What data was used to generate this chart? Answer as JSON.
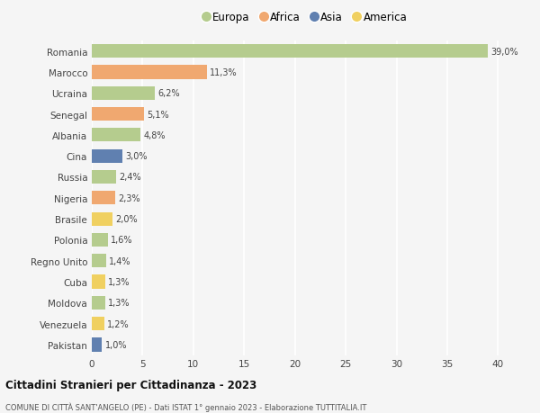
{
  "countries": [
    "Romania",
    "Marocco",
    "Ucraina",
    "Senegal",
    "Albania",
    "Cina",
    "Russia",
    "Nigeria",
    "Brasile",
    "Polonia",
    "Regno Unito",
    "Cuba",
    "Moldova",
    "Venezuela",
    "Pakistan"
  ],
  "values": [
    39.0,
    11.3,
    6.2,
    5.1,
    4.8,
    3.0,
    2.4,
    2.3,
    2.0,
    1.6,
    1.4,
    1.3,
    1.3,
    1.2,
    1.0
  ],
  "labels": [
    "39,0%",
    "11,3%",
    "6,2%",
    "5,1%",
    "4,8%",
    "3,0%",
    "2,4%",
    "2,3%",
    "2,0%",
    "1,6%",
    "1,4%",
    "1,3%",
    "1,3%",
    "1,2%",
    "1,0%"
  ],
  "continents": [
    "Europa",
    "Africa",
    "Europa",
    "Africa",
    "Europa",
    "Asia",
    "Europa",
    "Africa",
    "America",
    "Europa",
    "Europa",
    "America",
    "Europa",
    "America",
    "Asia"
  ],
  "continent_colors": {
    "Europa": "#b5cc8e",
    "Africa": "#f0a870",
    "Asia": "#6080b0",
    "America": "#f0d060"
  },
  "legend_order": [
    "Europa",
    "Africa",
    "Asia",
    "America"
  ],
  "title": "Cittadini Stranieri per Cittadinanza - 2023",
  "subtitle": "COMUNE DI CITTÀ SANT'ANGELO (PE) - Dati ISTAT 1° gennaio 2023 - Elaborazione TUTTITALIA.IT",
  "xlim": [
    0,
    42
  ],
  "xticks": [
    0,
    5,
    10,
    15,
    20,
    25,
    30,
    35,
    40
  ],
  "background_color": "#f5f5f5",
  "grid_color": "#e8e8e8",
  "bar_height": 0.65
}
